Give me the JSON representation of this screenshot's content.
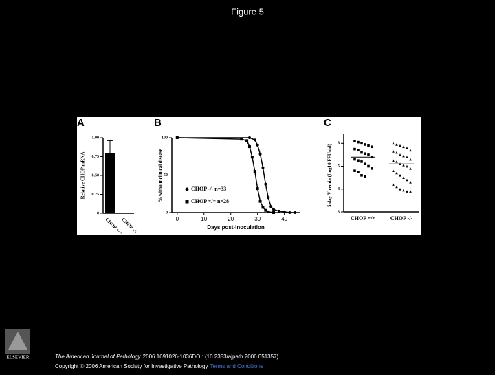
{
  "title": "Figure 5",
  "citation": {
    "journal": "The American Journal of Pathology",
    "details": "2006 1691026-1036DOI: (10.2353/ajpath.2006.051357)"
  },
  "copyright": "Copyright © 2006 American Society for Investigative Pathology",
  "link_text": "Terms and Conditions",
  "logo_text": "ELSEVIER",
  "chart_data": [
    {
      "type": "bar",
      "panel": "A",
      "ylabel": "Relative CHOP mRNA",
      "categories": [
        "CHOP +/+",
        "CHOP -/-"
      ],
      "values": [
        0.8,
        0
      ],
      "errors": [
        0.16,
        0
      ],
      "color": "#000000",
      "ylim": [
        0,
        1
      ],
      "yticks": [
        0,
        {
          "value": 0.25,
          "label": "0.25"
        },
        {
          "value": 0.5,
          "label": "0.50"
        },
        {
          "value": 0.75,
          "label": "0.75"
        },
        {
          "value": 1,
          "label": "1.00"
        }
      ]
    },
    {
      "type": "line",
      "panel": "B",
      "xlabel": "Days post-inoculation",
      "ylabel": "% without clinical disease",
      "series": [
        {
          "name": "CHOP -/- n=33",
          "marker": "circle",
          "color": "#000000",
          "x": [
            0,
            27,
            29,
            30,
            31,
            32,
            33,
            34,
            35,
            36,
            38,
            40,
            42,
            44
          ],
          "values": [
            100,
            100,
            97,
            90,
            78,
            60,
            38,
            20,
            8,
            4,
            2,
            1,
            0,
            0
          ]
        },
        {
          "name": "CHOP +/+ n=28",
          "marker": "square",
          "color": "#000000",
          "x": [
            0,
            24,
            26,
            27,
            28,
            29,
            30,
            31,
            32,
            33,
            34,
            36
          ],
          "values": [
            100,
            98,
            96,
            88,
            74,
            55,
            32,
            15,
            7,
            3,
            1,
            0
          ]
        }
      ],
      "xlim": [
        -2,
        46
      ],
      "xticks": [
        0,
        10,
        20,
        30,
        40
      ],
      "ylim": [
        0,
        100
      ],
      "yticks": [
        0,
        50,
        100
      ]
    },
    {
      "type": "strip",
      "panel": "C",
      "ylabel": "5 day Viremia (Log10 FFU/ml)",
      "categories": [
        "CHOP +/+",
        "CHOP -/-"
      ],
      "series": [
        {
          "name": "CHOP +/+",
          "marker": "square",
          "color": "#000000",
          "mean": 5.4,
          "values": [
            6.1,
            6.05,
            6.0,
            5.95,
            5.9,
            5.85,
            5.75,
            5.7,
            5.6,
            5.55,
            5.5,
            5.4,
            5.3,
            5.25,
            5.2,
            5.1,
            5.0,
            4.9,
            4.8,
            4.75,
            4.6,
            4.55
          ]
        },
        {
          "name": "CHOP -/-",
          "marker": "triangle",
          "color": "#000000",
          "mean": 5.1,
          "values": [
            6.0,
            5.95,
            5.9,
            5.85,
            5.8,
            5.7,
            5.65,
            5.6,
            5.5,
            5.45,
            5.4,
            5.3,
            5.25,
            5.2,
            5.1,
            5.05,
            5.0,
            4.9,
            4.8,
            4.7,
            4.6,
            4.5,
            4.4,
            4.3,
            4.2,
            4.1,
            4.0,
            3.95,
            3.9,
            3.9
          ]
        }
      ],
      "ylim": [
        3,
        6.4
      ],
      "yticks": [
        3,
        4,
        5,
        6
      ]
    }
  ]
}
